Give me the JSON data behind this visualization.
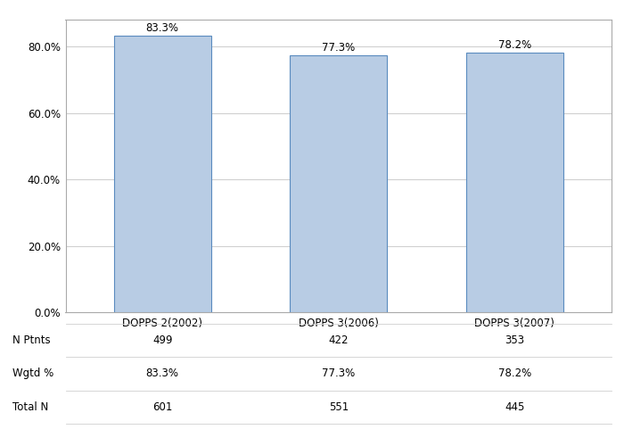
{
  "categories": [
    "DOPPS 2(2002)",
    "DOPPS 3(2006)",
    "DOPPS 3(2007)"
  ],
  "values": [
    83.3,
    77.3,
    78.2
  ],
  "bar_color": "#b8cce4",
  "bar_edge_color": "#5a8bbf",
  "bar_labels": [
    "83.3%",
    "77.3%",
    "78.2%"
  ],
  "ylim": [
    0,
    88
  ],
  "yticks": [
    0,
    20,
    40,
    60,
    80
  ],
  "ytick_labels": [
    "0.0%",
    "20.0%",
    "40.0%",
    "60.0%",
    "80.0%"
  ],
  "background_color": "#ffffff",
  "grid_color": "#d0d0d0",
  "table_rows": [
    "N Ptnts",
    "Wgtd %",
    "Total N"
  ],
  "table_data": [
    [
      "499",
      "422",
      "353"
    ],
    [
      "83.3%",
      "77.3%",
      "78.2%"
    ],
    [
      "601",
      "551",
      "445"
    ]
  ],
  "label_fontsize": 8.5,
  "tick_fontsize": 8.5,
  "table_fontsize": 8.5,
  "bar_label_fontsize": 8.5,
  "spine_color": "#aaaaaa"
}
